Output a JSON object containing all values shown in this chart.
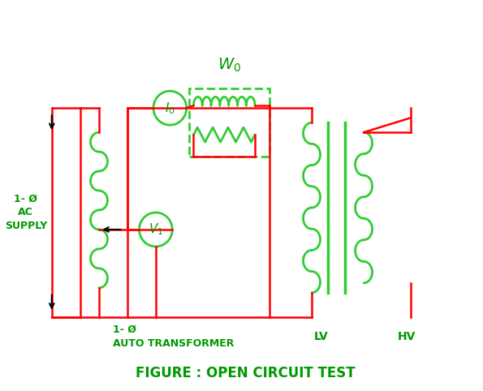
{
  "bg_color": "#ffffff",
  "red": "#ff0000",
  "green": "#00cc00",
  "dark_green": "#009900",
  "line_color": "#ff3333",
  "coil_color": "#33cc33",
  "title": "FIGURE : OPEN CIRCUIT TEST",
  "label_autotransformer": "1- Ø\nAUTO TRANSFORMER",
  "label_supply": "1- Ø\nAC\nSUPPLY",
  "label_lv": "LV",
  "label_hv": "HV",
  "label_w0": "W₀",
  "label_i0": "I₀",
  "label_v1": "V₁"
}
